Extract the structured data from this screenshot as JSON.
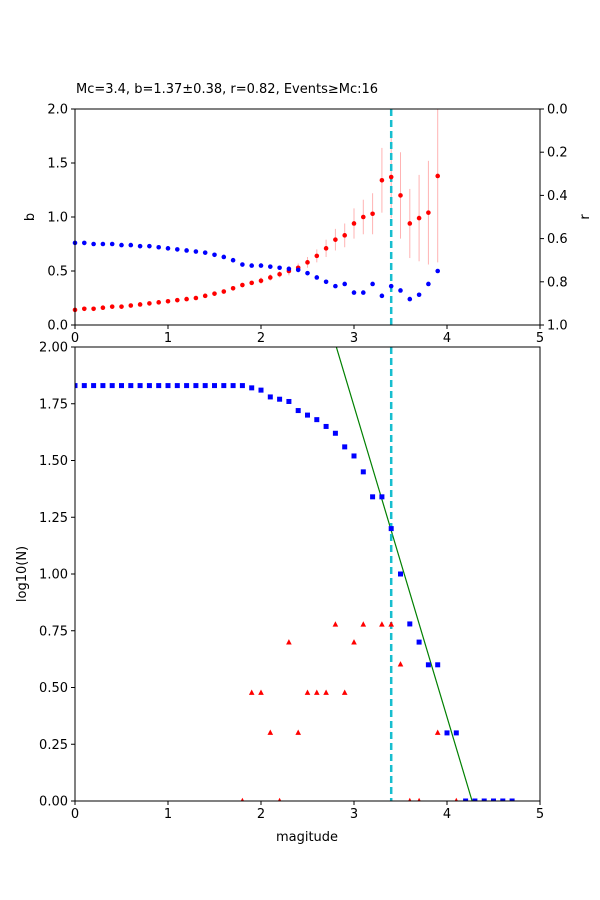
{
  "chart_data": [
    {
      "type": "scatter",
      "title": "Mc=3.4, b=1.37±0.38, r=0.82, Events≥Mc:16",
      "xlabel": "",
      "ylabel": "b",
      "ylabel_right": "r",
      "xlim": [
        0,
        5
      ],
      "ylim": [
        0,
        2.0
      ],
      "ylim_right": [
        1.0,
        0.0
      ],
      "x_ticks": [
        "0",
        "1",
        "2",
        "3",
        "4",
        "5"
      ],
      "y_ticks": [
        "0.0",
        "0.5",
        "1.0",
        "1.5",
        "2.0"
      ],
      "y_ticks_right": [
        "0.0",
        "0.2",
        "0.4",
        "0.6",
        "0.8",
        "1.0"
      ],
      "mc_line": 3.4,
      "colors": {
        "b": "#ff0000",
        "b_err": "#ffb3b3",
        "r": "#0000ff",
        "mc": "#17becf"
      },
      "series": [
        {
          "axis": "left",
          "x": [
            0.0,
            0.1,
            0.2,
            0.3,
            0.4,
            0.5,
            0.6,
            0.7,
            0.8,
            0.9,
            1.0,
            1.1,
            1.2,
            1.3,
            1.4,
            1.5,
            1.6,
            1.7,
            1.8,
            1.9,
            2.0,
            2.1,
            2.2,
            2.3,
            2.4,
            2.5,
            2.6,
            2.7,
            2.8,
            2.9,
            3.0,
            3.1,
            3.2,
            3.3,
            3.4,
            3.5,
            3.6,
            3.7,
            3.8,
            3.9
          ],
          "values": [
            0.14,
            0.15,
            0.15,
            0.16,
            0.17,
            0.17,
            0.18,
            0.19,
            0.2,
            0.21,
            0.22,
            0.23,
            0.24,
            0.25,
            0.27,
            0.29,
            0.31,
            0.34,
            0.37,
            0.39,
            0.41,
            0.44,
            0.47,
            0.5,
            0.53,
            0.58,
            0.64,
            0.71,
            0.79,
            0.83,
            0.94,
            1.0,
            1.03,
            1.34,
            1.37,
            1.2,
            0.94,
            0.99,
            1.04,
            1.38
          ],
          "err": [
            0.01,
            0.01,
            0.01,
            0.01,
            0.01,
            0.01,
            0.01,
            0.01,
            0.01,
            0.01,
            0.01,
            0.01,
            0.01,
            0.01,
            0.02,
            0.02,
            0.02,
            0.02,
            0.02,
            0.02,
            0.03,
            0.03,
            0.03,
            0.04,
            0.04,
            0.05,
            0.06,
            0.08,
            0.1,
            0.11,
            0.14,
            0.16,
            0.19,
            0.3,
            0.38,
            0.4,
            0.32,
            0.4,
            0.48,
            0.8
          ]
        },
        {
          "axis": "right",
          "x": [
            0.0,
            0.1,
            0.2,
            0.3,
            0.4,
            0.5,
            0.6,
            0.7,
            0.8,
            0.9,
            1.0,
            1.1,
            1.2,
            1.3,
            1.4,
            1.5,
            1.6,
            1.7,
            1.8,
            1.9,
            2.0,
            2.1,
            2.2,
            2.3,
            2.4,
            2.5,
            2.6,
            2.7,
            2.8,
            2.9,
            3.0,
            3.1,
            3.2,
            3.3,
            3.4,
            3.5,
            3.6,
            3.7,
            3.8,
            3.9
          ],
          "values": [
            0.62,
            0.62,
            0.625,
            0.625,
            0.625,
            0.63,
            0.63,
            0.635,
            0.635,
            0.64,
            0.645,
            0.65,
            0.655,
            0.66,
            0.665,
            0.675,
            0.685,
            0.7,
            0.72,
            0.725,
            0.725,
            0.73,
            0.735,
            0.74,
            0.745,
            0.76,
            0.78,
            0.8,
            0.82,
            0.81,
            0.85,
            0.85,
            0.81,
            0.865,
            0.82,
            0.84,
            0.88,
            0.86,
            0.81,
            0.75
          ]
        }
      ]
    },
    {
      "type": "scatter",
      "title": "",
      "xlabel": "magitude",
      "ylabel": "log10(N)",
      "xlim": [
        0,
        5
      ],
      "ylim": [
        0,
        2.0
      ],
      "x_ticks": [
        "0",
        "1",
        "2",
        "3",
        "4",
        "5"
      ],
      "y_ticks": [
        "0.00",
        "0.25",
        "0.50",
        "0.75",
        "1.00",
        "1.25",
        "1.50",
        "1.75",
        "2.00"
      ],
      "mc_line": 3.4,
      "fit_line": {
        "x": [
          2.81,
          4.27
        ],
        "y": [
          2.0,
          0.0
        ]
      },
      "colors": {
        "cumulative": "#0000ff",
        "noncumulative": "#ff0000",
        "fit": "#008000",
        "mc": "#17becf"
      },
      "series": [
        {
          "marker": "square",
          "x": [
            0.0,
            0.1,
            0.2,
            0.3,
            0.4,
            0.5,
            0.6,
            0.7,
            0.8,
            0.9,
            1.0,
            1.1,
            1.2,
            1.3,
            1.4,
            1.5,
            1.6,
            1.7,
            1.8,
            1.9,
            2.0,
            2.1,
            2.2,
            2.3,
            2.4,
            2.5,
            2.6,
            2.7,
            2.8,
            2.9,
            3.0,
            3.1,
            3.2,
            3.3,
            3.4,
            3.5,
            3.6,
            3.7,
            3.8,
            3.9,
            4.0,
            4.1,
            4.2,
            4.3,
            4.4,
            4.5,
            4.6,
            4.7
          ],
          "values": [
            1.83,
            1.83,
            1.83,
            1.83,
            1.83,
            1.83,
            1.83,
            1.83,
            1.83,
            1.83,
            1.83,
            1.83,
            1.83,
            1.83,
            1.83,
            1.83,
            1.83,
            1.83,
            1.83,
            1.82,
            1.81,
            1.78,
            1.77,
            1.76,
            1.72,
            1.7,
            1.68,
            1.65,
            1.62,
            1.56,
            1.52,
            1.45,
            1.34,
            1.34,
            1.2,
            1.0,
            0.78,
            0.7,
            0.6,
            0.6,
            0.3,
            0.3,
            0,
            0,
            0,
            0,
            0,
            0
          ]
        },
        {
          "marker": "triangle",
          "x": [
            1.8,
            1.9,
            2.0,
            2.1,
            2.2,
            2.3,
            2.4,
            2.5,
            2.6,
            2.7,
            2.8,
            2.9,
            3.0,
            3.1,
            3.3,
            3.4,
            3.5,
            3.6,
            3.7,
            3.9,
            4.1
          ],
          "values": [
            0,
            0.477,
            0.477,
            0.301,
            0,
            0.699,
            0.301,
            0.477,
            0.477,
            0.477,
            0.778,
            0.477,
            0.699,
            0.778,
            0.778,
            0.778,
            0.602,
            0,
            0,
            0.301,
            0
          ]
        }
      ]
    }
  ]
}
